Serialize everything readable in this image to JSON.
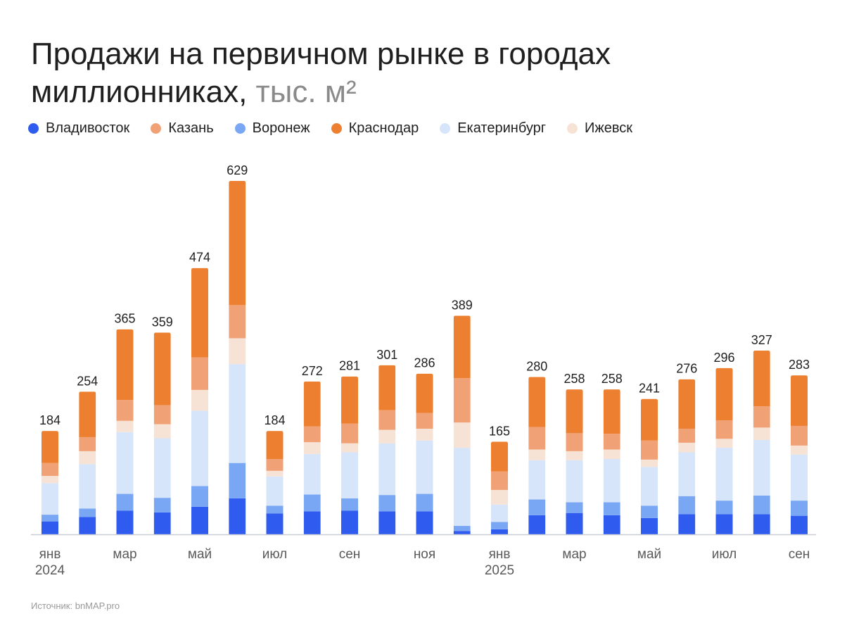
{
  "title": {
    "main": "Продажи на первичном рынке в городах миллионниках,",
    "unit": "тыс. м²"
  },
  "source": "Источник: bnMAP.pro",
  "chart_data": {
    "type": "bar",
    "stacked": true,
    "categories": [
      "янв 2024",
      "фев 2024",
      "мар 2024",
      "апр 2024",
      "май 2024",
      "июн 2024",
      "июл 2024",
      "авг 2024",
      "сен 2024",
      "окт 2024",
      "ноя 2024",
      "дек 2024",
      "янв 2025",
      "фев 2025",
      "мар 2025",
      "апр 2025",
      "май 2025",
      "июн 2025",
      "июл 2025",
      "авг 2025",
      "сен 2025"
    ],
    "x_tick_labels": [
      {
        "index": 0,
        "label": "янв",
        "year": "2024"
      },
      {
        "index": 2,
        "label": "мар"
      },
      {
        "index": 4,
        "label": "май"
      },
      {
        "index": 6,
        "label": "июл"
      },
      {
        "index": 8,
        "label": "сен"
      },
      {
        "index": 10,
        "label": "ноя"
      },
      {
        "index": 12,
        "label": "янв",
        "year": "2025"
      },
      {
        "index": 14,
        "label": "мар"
      },
      {
        "index": 16,
        "label": "май"
      },
      {
        "index": 18,
        "label": "июл"
      },
      {
        "index": 20,
        "label": "сен"
      }
    ],
    "totals": [
      184,
      254,
      365,
      359,
      474,
      629,
      184,
      272,
      281,
      301,
      286,
      389,
      165,
      280,
      258,
      258,
      241,
      276,
      296,
      327,
      283
    ],
    "series": [
      {
        "name": "Владивосток",
        "color": "#2f5bef",
        "values": [
          23,
          31,
          42,
          39,
          49,
          64,
          37,
          41,
          42,
          41,
          41,
          6,
          9,
          34,
          38,
          34,
          29,
          36,
          36,
          36,
          33
        ]
      },
      {
        "name": "Воронеж",
        "color": "#7aa7f3",
        "values": [
          12,
          15,
          30,
          26,
          37,
          63,
          14,
          30,
          22,
          29,
          31,
          9,
          13,
          28,
          19,
          23,
          22,
          32,
          24,
          33,
          27
        ]
      },
      {
        "name": "Екатеринбург",
        "color": "#d6e5f9",
        "values": [
          56,
          79,
          110,
          106,
          134,
          176,
          52,
          72,
          82,
          92,
          95,
          139,
          31,
          70,
          75,
          77,
          69,
          78,
          94,
          99,
          82
        ]
      },
      {
        "name": "Ижевск",
        "color": "#f7e2d6",
        "values": [
          13,
          23,
          20,
          25,
          37,
          46,
          10,
          21,
          16,
          24,
          21,
          45,
          26,
          19,
          16,
          17,
          13,
          17,
          16,
          22,
          16
        ]
      },
      {
        "name": "Казань",
        "color": "#f0a276",
        "values": [
          23,
          25,
          37,
          34,
          58,
          59,
          21,
          28,
          35,
          35,
          28,
          79,
          33,
          40,
          32,
          28,
          34,
          25,
          33,
          38,
          35
        ]
      },
      {
        "name": "Краснодар",
        "color": "#ec8030",
        "values": [
          57,
          81,
          126,
          129,
          159,
          221,
          50,
          80,
          84,
          80,
          70,
          111,
          53,
          89,
          78,
          79,
          74,
          88,
          93,
          99,
          90
        ]
      }
    ],
    "legend_order": [
      "Владивосток",
      "Казань",
      "Воронеж",
      "Краснодар",
      "Екатеринбург",
      "Ижевск"
    ],
    "legend_position": "top-left",
    "grid": false,
    "ylim": [
      0,
      629
    ]
  }
}
